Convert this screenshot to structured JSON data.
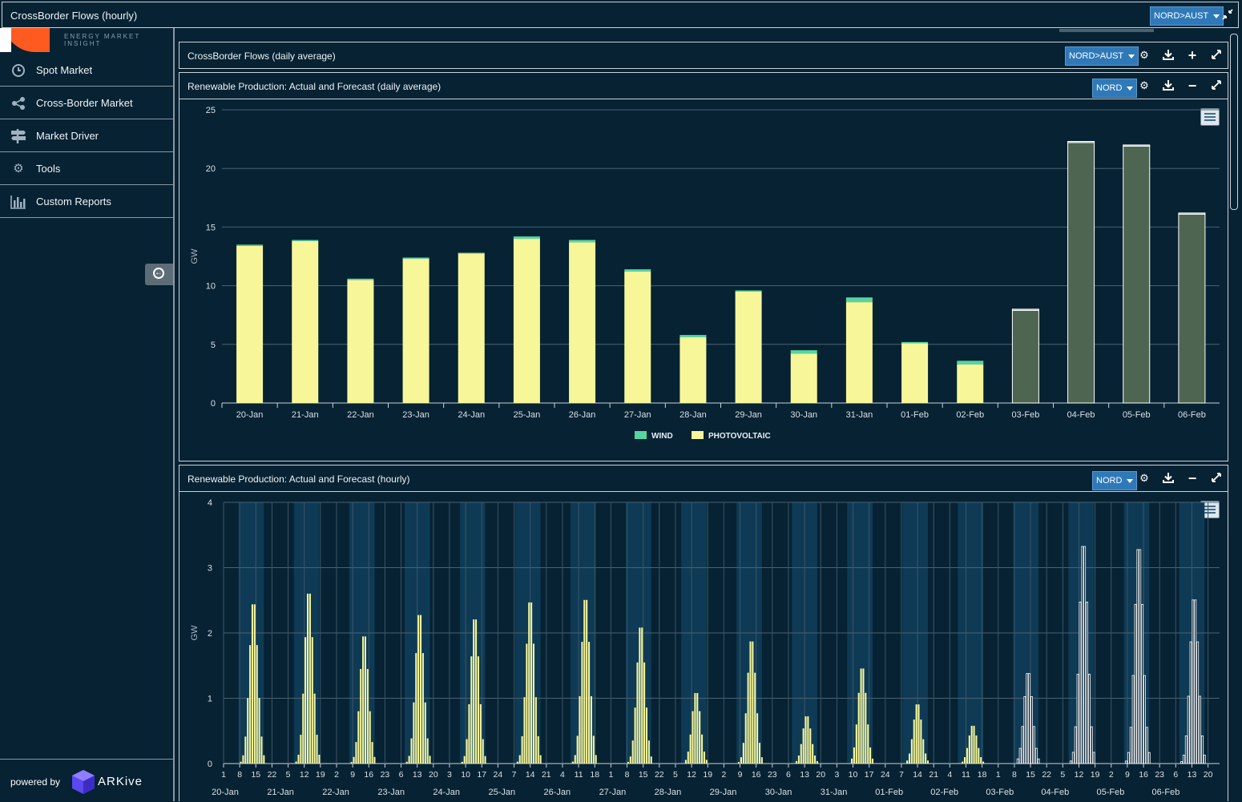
{
  "top_panel": {
    "title": "CrossBorder Flows (hourly)",
    "selector": "NORD>AUST"
  },
  "sidebar": {
    "logo_tagline": "ENERGY MARKET INSIGHT",
    "items": [
      {
        "label": "Spot Market",
        "icon": "clock-icon"
      },
      {
        "label": "Cross-Border Market",
        "icon": "share-icon"
      },
      {
        "label": "Market Driver",
        "icon": "signpost-icon"
      },
      {
        "label": "Tools",
        "icon": "gear-icon"
      },
      {
        "label": "Custom Reports",
        "icon": "bar-chart-icon"
      }
    ],
    "powered_by": "powered by",
    "brand": "ARKive"
  },
  "panels": {
    "daily_flows": {
      "title": "CrossBorder Flows (daily average)",
      "selector": "NORD>AUST"
    },
    "daily_renewables": {
      "title": "Renewable Production: Actual and Forecast (daily average)",
      "selector": "NORD"
    },
    "hourly_renewables": {
      "title": "Renewable Production: Actual and Forecast (hourly)",
      "selector": "NORD"
    }
  },
  "colors": {
    "wind": "#55d6a0",
    "photovoltaic": "#f7f79a",
    "forecast": "#4e6552",
    "background": "#062233",
    "night_band": "#0e3a55"
  },
  "chart_data": [
    {
      "type": "bar",
      "stacked": true,
      "ylabel": "GW",
      "ylim": [
        0,
        25
      ],
      "yticks": [
        0,
        5,
        10,
        15,
        20,
        25
      ],
      "categories": [
        "20-Jan",
        "21-Jan",
        "22-Jan",
        "23-Jan",
        "24-Jan",
        "25-Jan",
        "26-Jan",
        "27-Jan",
        "28-Jan",
        "29-Jan",
        "30-Jan",
        "31-Jan",
        "01-Feb",
        "02-Feb",
        "03-Feb",
        "04-Feb",
        "05-Feb",
        "06-Feb"
      ],
      "series": [
        {
          "name": "PHOTOVOLTAIC",
          "values": [
            13.4,
            13.8,
            10.5,
            12.3,
            12.8,
            14.0,
            13.7,
            11.2,
            5.6,
            9.5,
            4.2,
            8.6,
            5.1,
            3.3,
            7.9,
            22.2,
            21.9,
            16.1
          ]
        },
        {
          "name": "WIND",
          "values": [
            0.1,
            0.1,
            0.1,
            0.1,
            0.0,
            0.2,
            0.2,
            0.2,
            0.2,
            0.1,
            0.3,
            0.4,
            0.1,
            0.3,
            0.1,
            0.1,
            0.1,
            0.1
          ]
        }
      ],
      "forecast_from": "03-Feb",
      "legend": "bottom-center",
      "grid": true
    },
    {
      "type": "bar",
      "ylabel": "GW",
      "ylim": [
        0,
        4
      ],
      "yticks": [
        0,
        1,
        2,
        3,
        4
      ],
      "days": [
        "20-Jan",
        "21-Jan",
        "22-Jan",
        "23-Jan",
        "24-Jan",
        "25-Jan",
        "26-Jan",
        "27-Jan",
        "28-Jan",
        "29-Jan",
        "30-Jan",
        "31-Jan",
        "01-Feb",
        "02-Feb",
        "03-Feb",
        "04-Feb",
        "05-Feb",
        "06-Feb"
      ],
      "hour_tick_labels": [
        "1",
        "8",
        "15",
        "22",
        "5",
        "12",
        "19",
        "2",
        "9",
        "16",
        "23",
        "6",
        "13",
        "20",
        "3",
        "10",
        "17",
        "24",
        "7",
        "14",
        "21",
        "4",
        "11",
        "18",
        "1",
        "8",
        "15",
        "22",
        "5",
        "12",
        "19",
        "2",
        "9",
        "16",
        "23",
        "6",
        "13",
        "20",
        "3",
        "10",
        "17",
        "24",
        "7",
        "14",
        "21",
        "4",
        "11",
        "18",
        "1",
        "8",
        "15",
        "22",
        "5",
        "12",
        "19",
        "2",
        "9",
        "16",
        "23",
        "6",
        "13",
        "20"
      ],
      "daily_peaks": [
        2.53,
        2.7,
        2.02,
        2.36,
        2.29,
        2.56,
        2.6,
        2.16,
        1.12,
        1.94,
        0.75,
        1.51,
        0.94,
        0.6,
        1.43,
        3.45,
        3.4,
        2.6
      ],
      "forecast_from": "03-Feb",
      "grid": true
    }
  ]
}
